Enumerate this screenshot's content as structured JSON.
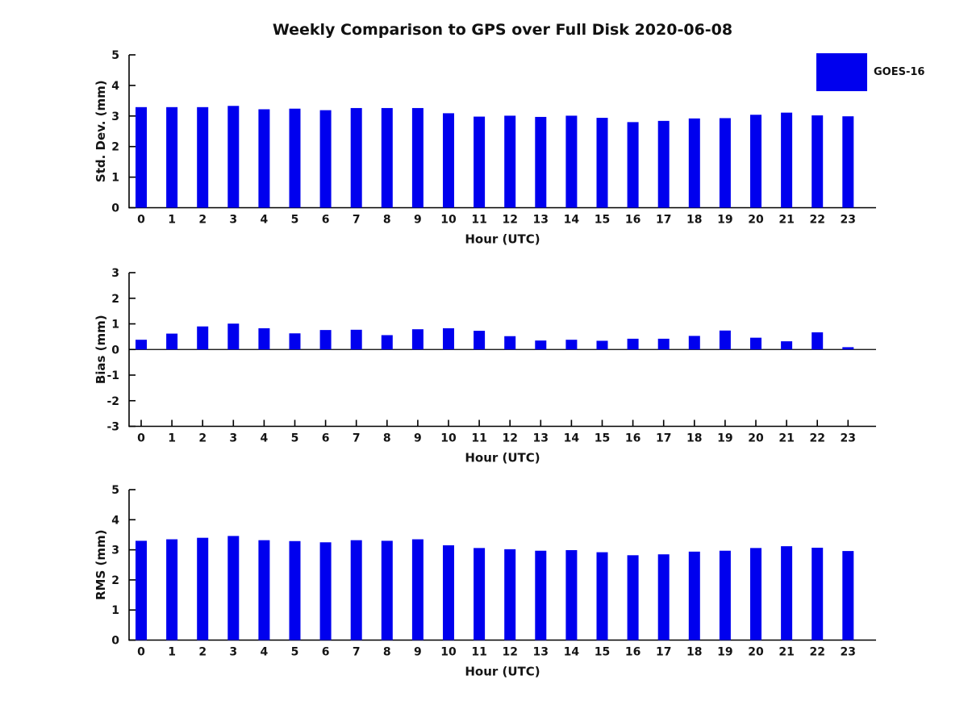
{
  "title": "Weekly Comparison to GPS over Full Disk 2020-06-08",
  "legend": {
    "label": "GOES-16",
    "color": "#0000EE",
    "position": "upper right"
  },
  "colors": {
    "bar": "#0000EE",
    "axis": "#000000",
    "text": "#141414",
    "background": "#ffffff"
  },
  "chart_data": [
    {
      "type": "bar",
      "title": "",
      "xlabel": "Hour (UTC)",
      "ylabel": "Std. Dev. (mm)",
      "ylim": [
        0,
        5
      ],
      "yticks": [
        0,
        1,
        2,
        3,
        4,
        5
      ],
      "grid": false,
      "categories": [
        "0",
        "1",
        "2",
        "3",
        "4",
        "5",
        "6",
        "7",
        "8",
        "9",
        "10",
        "11",
        "12",
        "13",
        "14",
        "15",
        "16",
        "17",
        "18",
        "19",
        "20",
        "21",
        "22",
        "23"
      ],
      "series": [
        {
          "name": "GOES-16",
          "values": [
            3.29,
            3.29,
            3.29,
            3.33,
            3.22,
            3.24,
            3.19,
            3.26,
            3.26,
            3.26,
            3.09,
            2.98,
            3.01,
            2.97,
            3.01,
            2.94,
            2.8,
            2.84,
            2.92,
            2.93,
            3.04,
            3.11,
            3.02,
            2.99
          ]
        }
      ]
    },
    {
      "type": "bar",
      "title": "",
      "xlabel": "Hour (UTC)",
      "ylabel": "Bias (mm)",
      "ylim": [
        -3,
        3
      ],
      "yticks": [
        3,
        2,
        1,
        0,
        -1,
        -2,
        -3
      ],
      "grid": false,
      "categories": [
        "0",
        "1",
        "2",
        "3",
        "4",
        "5",
        "6",
        "7",
        "8",
        "9",
        "10",
        "11",
        "12",
        "13",
        "14",
        "15",
        "16",
        "17",
        "18",
        "19",
        "20",
        "21",
        "22",
        "23"
      ],
      "series": [
        {
          "name": "GOES-16",
          "values": [
            0.38,
            0.62,
            0.9,
            1.01,
            0.83,
            0.63,
            0.76,
            0.77,
            0.56,
            0.79,
            0.83,
            0.73,
            0.52,
            0.35,
            0.38,
            0.34,
            0.42,
            0.42,
            0.53,
            0.74,
            0.46,
            0.32,
            0.67,
            0.09
          ]
        }
      ]
    },
    {
      "type": "bar",
      "title": "",
      "xlabel": "Hour (UTC)",
      "ylabel": "RMS (mm)",
      "ylim": [
        0,
        5
      ],
      "yticks": [
        0,
        1,
        2,
        3,
        4,
        5
      ],
      "grid": false,
      "categories": [
        "0",
        "1",
        "2",
        "3",
        "4",
        "5",
        "6",
        "7",
        "8",
        "9",
        "10",
        "11",
        "12",
        "13",
        "14",
        "15",
        "16",
        "17",
        "18",
        "19",
        "20",
        "21",
        "22",
        "23"
      ],
      "series": [
        {
          "name": "GOES-16",
          "values": [
            3.3,
            3.35,
            3.4,
            3.46,
            3.32,
            3.29,
            3.25,
            3.32,
            3.3,
            3.35,
            3.15,
            3.06,
            3.02,
            2.97,
            2.99,
            2.92,
            2.82,
            2.85,
            2.94,
            2.97,
            3.06,
            3.12,
            3.07,
            2.96
          ]
        }
      ]
    }
  ]
}
